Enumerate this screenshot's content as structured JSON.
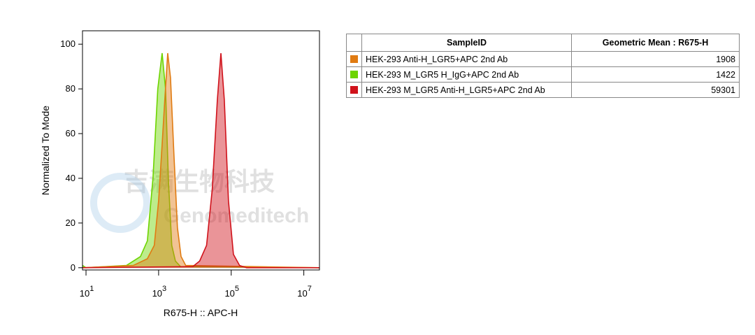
{
  "chart_data": {
    "type": "area",
    "xlabel": "R675-H :: APC-H",
    "ylabel": "Normalized To Mode",
    "xscale": "log",
    "xlim": [
      8,
      27000000
    ],
    "ylim": [
      -1,
      106
    ],
    "xticks": [
      {
        "value": 10,
        "label": "10",
        "sup": "1"
      },
      {
        "value": 1000,
        "label": "10",
        "sup": "3"
      },
      {
        "value": 100000,
        "label": "10",
        "sup": "5"
      },
      {
        "value": 10000000,
        "label": "10",
        "sup": "7"
      }
    ],
    "yticks": [
      0,
      20,
      40,
      60,
      80,
      100
    ],
    "series": [
      {
        "name": "HEK-293 M_LGR5 H_IgG+APC 2nd Ab",
        "color": "#6dd400",
        "x": [
          8,
          10,
          130,
          316,
          490,
          700,
          950,
          1250,
          1550,
          1850,
          2300,
          2900,
          4000,
          27000000
        ],
        "values": [
          1,
          0,
          1,
          5,
          12,
          40,
          80,
          96,
          80,
          40,
          10,
          3,
          0.5,
          0
        ]
      },
      {
        "name": "HEK-293 Anti-H_LGR5+APC 2nd Ab",
        "color": "#e07b12",
        "x": [
          8,
          200,
          490,
          760,
          1000,
          1250,
          1480,
          1780,
          2130,
          2650,
          3300,
          4150,
          5600,
          27000000
        ],
        "values": [
          0,
          1,
          4,
          10,
          30,
          55,
          75,
          96,
          85,
          50,
          18,
          5,
          1,
          0
        ]
      },
      {
        "name": "HEK-293 M_LGR5 Anti-H_LGR5+APC 2nd Ab",
        "color": "#d0121b",
        "x": [
          8,
          8700,
          13500,
          21000,
          30000,
          41500,
          52000,
          64500,
          84000,
          115000,
          170000,
          265000,
          27000000
        ],
        "values": [
          0,
          0.5,
          3,
          10,
          35,
          75,
          96,
          75,
          30,
          6,
          1,
          0,
          0
        ]
      }
    ]
  },
  "table": {
    "header": [
      "SampleID",
      "Geometric Mean : R675-H"
    ],
    "rows": [
      {
        "color": "#e07b12",
        "name": "HEK-293 Anti-H_LGR5+APC 2nd Ab",
        "value": "1908"
      },
      {
        "color": "#6dd400",
        "name": "HEK-293 M_LGR5 H_IgG+APC 2nd Ab",
        "value": "1422"
      },
      {
        "color": "#d0121b",
        "name": "HEK-293 M_LGR5 Anti-H_LGR5+APC 2nd Ab",
        "value": "59301"
      }
    ]
  },
  "watermark": {
    "cn": "吉满生物科技",
    "en": "Genomeditech"
  }
}
